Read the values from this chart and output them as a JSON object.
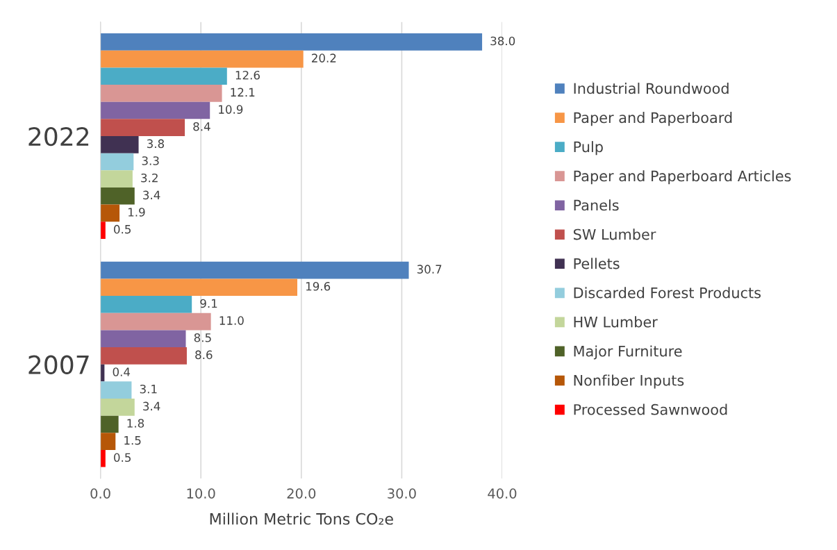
{
  "chart_data": {
    "type": "bar",
    "orientation": "horizontal",
    "categories": [
      "2022",
      "2007"
    ],
    "xlabel": "Million Metric Tons CO₂e",
    "xlim": [
      0,
      40
    ],
    "xticks": [
      {
        "value": 0,
        "label": "0.0"
      },
      {
        "value": 10,
        "label": "10.0"
      },
      {
        "value": 20,
        "label": "20.0"
      },
      {
        "value": 30,
        "label": "30.0"
      },
      {
        "value": 40,
        "label": "40.0"
      }
    ],
    "grid": "x",
    "legend": "right",
    "series": [
      {
        "name": "Industrial Roundwood",
        "color": "#4f81bd",
        "values": [
          38.0,
          30.7
        ],
        "value_labels": [
          "38.0",
          "30.7"
        ]
      },
      {
        "name": "Paper and Paperboard",
        "color": "#f79646",
        "values": [
          20.2,
          19.6
        ],
        "value_labels": [
          "20.2",
          "19.6"
        ]
      },
      {
        "name": "Pulp",
        "color": "#4bacc6",
        "values": [
          12.6,
          9.1
        ],
        "value_labels": [
          "12.6",
          "9.1"
        ]
      },
      {
        "name": "Paper and Paperboard Articles",
        "color": "#d99694",
        "values": [
          12.1,
          11.0
        ],
        "value_labels": [
          "12.1",
          "11.0"
        ]
      },
      {
        "name": "Panels",
        "color": "#8064a2",
        "values": [
          10.9,
          8.5
        ],
        "value_labels": [
          "10.9",
          "8.5"
        ]
      },
      {
        "name": "SW Lumber",
        "color": "#c0504d",
        "values": [
          8.4,
          8.6
        ],
        "value_labels": [
          "8.4",
          "8.6"
        ]
      },
      {
        "name": "Pellets",
        "color": "#403152",
        "values": [
          3.8,
          0.4
        ],
        "value_labels": [
          "3.8",
          "0.4"
        ]
      },
      {
        "name": "Discarded Forest Products",
        "color": "#93cddd",
        "values": [
          3.3,
          3.1
        ],
        "value_labels": [
          "3.3",
          "3.1"
        ]
      },
      {
        "name": "HW Lumber",
        "color": "#c3d69b",
        "values": [
          3.2,
          3.4
        ],
        "value_labels": [
          "3.2",
          "3.4"
        ]
      },
      {
        "name": "Major Furniture",
        "color": "#4f6228",
        "values": [
          3.4,
          1.8
        ],
        "value_labels": [
          "3.4",
          "1.8"
        ]
      },
      {
        "name": "Nonfiber Inputs",
        "color": "#b65708",
        "values": [
          1.9,
          1.5
        ],
        "value_labels": [
          "1.9",
          "1.5"
        ]
      },
      {
        "name": "Processed Sawnwood",
        "color": "#ff0000",
        "values": [
          0.5,
          0.5
        ],
        "value_labels": [
          "0.5",
          "0.5"
        ]
      }
    ]
  }
}
